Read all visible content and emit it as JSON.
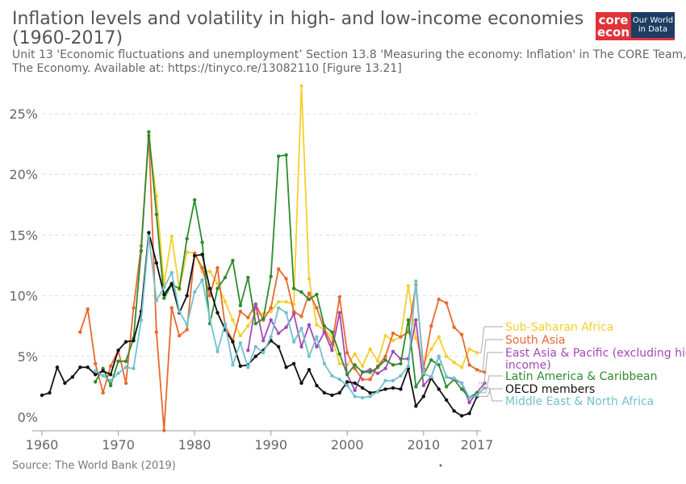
{
  "header": {
    "title": "Inflation levels and volatility in high- and low-income economies (1960-2017)",
    "subtitle": "Unit 13 'Economic fluctuations and unemployment’ Section 13.8 'Measuring the economy: Inflation' in The CORE Team, The Economy. Available at: https://tinyco.re/13082110 [Figure 13.21]"
  },
  "logo": {
    "core_line1": "core",
    "core_line2": "econ",
    "owid_line1": "Our World",
    "owid_line2": "in Data"
  },
  "footer": {
    "source": "Source: The World Bank (2019)"
  },
  "chart_data": {
    "type": "line",
    "x_range": [
      1960,
      2017
    ],
    "y_range": [
      -1,
      28
    ],
    "x_ticks": [
      1960,
      1970,
      1980,
      1990,
      2000,
      2010,
      2017
    ],
    "y_ticks": [
      0,
      5,
      10,
      15,
      20,
      25
    ],
    "y_tick_labels": [
      "0%",
      "5%",
      "10%",
      "15%",
      "20%",
      "25%"
    ],
    "grid": "horizontal dashed",
    "legend_placement": "right",
    "series": [
      {
        "name": "Sub-Saharan Africa",
        "color": "#f5cf2c",
        "start": 1974,
        "values": [
          23,
          18.2,
          11,
          14.9,
          10.5,
          13.6,
          13.5,
          12,
          12,
          11,
          9.5,
          8,
          6.7,
          7.5,
          8.5,
          8.5,
          8.7,
          9.5,
          9.5,
          9.3,
          27.3,
          11.4,
          7.6,
          7.2,
          6.6,
          4.4,
          4.3,
          5.2,
          4.2,
          5.6,
          4.6,
          6.7,
          6.3,
          6.6,
          10.8,
          6.5,
          4.4,
          5.6,
          6.6,
          5.0,
          4.5,
          4.1,
          5.6,
          5.3
        ]
      },
      {
        "name": "South Asia",
        "color": "#e8692e",
        "start": 1965,
        "values": [
          7.0,
          8.9,
          4.4,
          2.0,
          4.2,
          5.5,
          2.8,
          9.0,
          14.1,
          23.2,
          7.0,
          -1.1,
          9.0,
          6.7,
          7.2,
          13.5,
          12.3,
          10.0,
          12.3,
          7.5,
          6.3,
          8.7,
          8.2,
          9.3,
          8.0,
          9.0,
          12.2,
          11.4,
          8.7,
          8.3,
          10.2,
          9.0,
          7.2,
          6.0,
          9.9,
          5.3,
          4.0,
          3.1,
          3.1,
          4.2,
          5.0,
          6.9,
          6.6,
          7.0,
          10.9,
          4.0,
          7.5,
          9.7,
          9.4,
          7.4,
          6.8,
          4.3,
          3.9,
          3.7
        ]
      },
      {
        "name": "East Asia & Pacific (excluding high income)",
        "color": "#a349b6",
        "start": 1987,
        "values": [
          5.5,
          9.3,
          6.3,
          8.0,
          6.9,
          7.4,
          8.5,
          5.8,
          7.6,
          5.8,
          7.0,
          5.5,
          8.6,
          3.5,
          2.2,
          3.7,
          3.9,
          3.6,
          4.0,
          5.4,
          4.8,
          4.8,
          8.0,
          2.6,
          3.3,
          5.0,
          3.3,
          3.1,
          2.8,
          1.2,
          2.0,
          2.8
        ]
      },
      {
        "name": "Latin America & Caribbean",
        "color": "#2e8b30",
        "start": 1967,
        "values": [
          2.9,
          4.0,
          2.6,
          4.6,
          4.6,
          6.5,
          13.7,
          23.5,
          16.7,
          9.8,
          10.9,
          10.6,
          14.7,
          17.9,
          14.4,
          7.7,
          10.6,
          11.5,
          12.9,
          9.2,
          11.5,
          7.7,
          8.1,
          11.6,
          21.5,
          21.6,
          10.6,
          10.3,
          9.7,
          10.1,
          7.5,
          7.0,
          5.2,
          3.5,
          4.3,
          3.7,
          3.7,
          4.1,
          4.7,
          4.3,
          4.4,
          8.0,
          2.5,
          3.5,
          4.7,
          4.3,
          2.5,
          3.1,
          2.3,
          1.6,
          2.0
        ]
      },
      {
        "name": "OECD members",
        "color": "#111111",
        "start": 1960,
        "values": [
          1.8,
          2.0,
          4.1,
          2.8,
          3.3,
          4.1,
          4.1,
          3.5,
          3.8,
          3.5,
          5.5,
          6.2,
          6.3,
          8.7,
          15.2,
          12.7,
          10.1,
          11.0,
          8.6,
          10.0,
          13.3,
          13.4,
          10.6,
          8.6,
          7.2,
          6.2,
          4.2,
          4.3,
          5.0,
          5.5,
          6.3,
          5.8,
          4.1,
          4.4,
          2.8,
          3.9,
          2.6,
          2.0,
          1.8,
          2.0,
          2.9,
          2.8,
          2.4,
          2.0,
          2.1,
          2.3,
          2.4,
          2.3,
          4.0,
          0.9,
          1.7,
          3.2,
          2.3,
          1.4,
          0.5,
          0.1,
          0.3,
          1.7
        ]
      },
      {
        "name": "Middle East & North Africa",
        "color": "#72c1cc",
        "start": 1967,
        "values": [
          3.8,
          3.4,
          3.0,
          3.6,
          4.1,
          4.0,
          8.0,
          14.9,
          9.6,
          10.7,
          11.9,
          8.7,
          7.6,
          10.3,
          11.3,
          8.1,
          5.4,
          7.7,
          4.3,
          6.1,
          4.1,
          5.8,
          5.3,
          6.6,
          9.0,
          8.6,
          6.2,
          7.3,
          5.0,
          6.6,
          4.4,
          3.4,
          3.1,
          2.6,
          1.7,
          1.6,
          1.7,
          2.1,
          3.0,
          3.0,
          3.4,
          4.2,
          11.2,
          3.6,
          3.3,
          5.0,
          3.3,
          3.2,
          2.8,
          1.6,
          1.8,
          2.4
        ]
      }
    ]
  }
}
